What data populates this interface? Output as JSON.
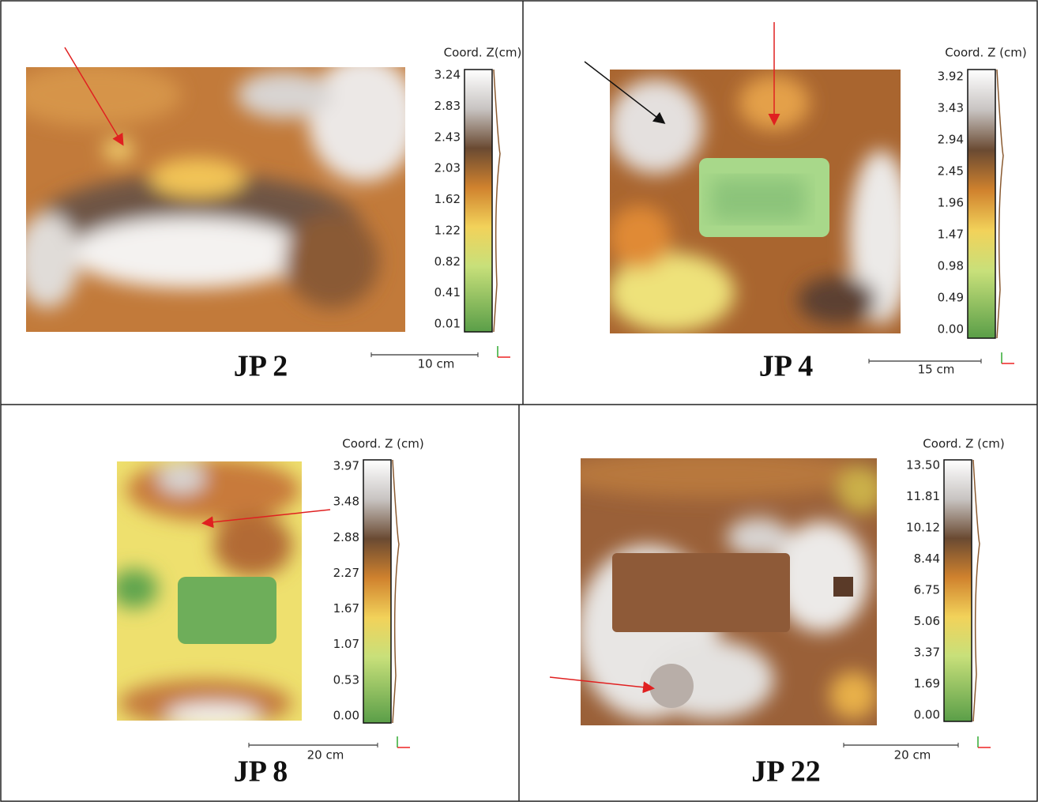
{
  "panels": [
    {
      "label": "JP 2",
      "scale_title": "Coord. Z(cm)",
      "scale_ticks": [
        "3.24",
        "2.83",
        "2.43",
        "2.03",
        "1.62",
        "1.22",
        "0.82",
        "0.41",
        "0.01"
      ],
      "scale_bar": "10 cm"
    },
    {
      "label": "JP 4",
      "scale_title": "Coord. Z (cm)",
      "scale_ticks": [
        "3.92",
        "3.43",
        "2.94",
        "2.45",
        "1.96",
        "1.47",
        "0.98",
        "0.49",
        "0.00"
      ],
      "scale_bar": "15 cm"
    },
    {
      "label": "JP 8",
      "scale_title": "Coord. Z (cm)",
      "scale_ticks": [
        "3.97",
        "3.48",
        "2.88",
        "2.27",
        "1.67",
        "1.07",
        "0.53",
        "0.00"
      ],
      "scale_bar": "20 cm"
    },
    {
      "label": "JP 22",
      "scale_title": "Coord. Z (cm)",
      "scale_ticks": [
        "13.50",
        "11.81",
        "10.12",
        "8.44",
        "6.75",
        "5.06",
        "3.37",
        "1.69",
        "0.00"
      ],
      "scale_bar": "20 cm"
    }
  ]
}
